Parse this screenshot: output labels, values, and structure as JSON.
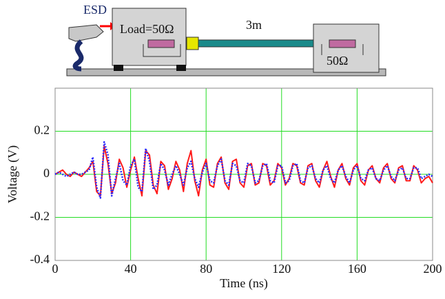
{
  "diagram": {
    "esd": "ESD",
    "load": "Load=50Ω",
    "cable": "3m",
    "termination": "50Ω"
  },
  "chart_data": {
    "type": "line",
    "xlabel": "Time (ns)",
    "ylabel": "Voltage (V)",
    "x": [
      0,
      2,
      4,
      6,
      8,
      10,
      12,
      14,
      16,
      18,
      20,
      22,
      24,
      26,
      28,
      30,
      32,
      34,
      36,
      38,
      40,
      42,
      44,
      46,
      48,
      50,
      52,
      54,
      56,
      58,
      60,
      62,
      64,
      66,
      68,
      70,
      72,
      74,
      76,
      78,
      80,
      82,
      84,
      86,
      88,
      90,
      92,
      94,
      96,
      98,
      100,
      102,
      104,
      106,
      108,
      110,
      112,
      114,
      116,
      118,
      120,
      122,
      124,
      126,
      128,
      130,
      132,
      134,
      136,
      138,
      140,
      142,
      144,
      146,
      148,
      150,
      152,
      154,
      156,
      158,
      160,
      162,
      164,
      166,
      168,
      170,
      172,
      174,
      176,
      178,
      180,
      182,
      184,
      186,
      188,
      190,
      192,
      194,
      196,
      198,
      200
    ],
    "series": [
      {
        "color": "#ff1a1a",
        "style": "solid",
        "values": [
          0,
          0.01,
          0.02,
          0,
          -0.01,
          0.01,
          0,
          -0.01,
          0.01,
          0.03,
          0.06,
          -0.08,
          -0.1,
          0.13,
          0.05,
          -0.09,
          -0.04,
          0.07,
          0.03,
          -0.06,
          0.02,
          0.08,
          -0.02,
          -0.1,
          0.11,
          0.09,
          -0.05,
          -0.09,
          0.06,
          0.04,
          -0.07,
          -0.02,
          0.06,
          0.02,
          -0.08,
          0.05,
          0.11,
          -0.03,
          -0.1,
          0.02,
          0.07,
          -0.05,
          -0.06,
          0.05,
          0.08,
          -0.04,
          -0.07,
          0.06,
          0.07,
          -0.04,
          -0.06,
          0.04,
          0.05,
          -0.05,
          -0.04,
          0.05,
          0.04,
          -0.05,
          -0.03,
          0.05,
          0.03,
          -0.05,
          -0.02,
          0.05,
          0.04,
          -0.04,
          -0.05,
          0.04,
          0.05,
          -0.03,
          -0.06,
          0.02,
          0.06,
          -0.01,
          -0.06,
          0.02,
          0.05,
          -0.02,
          -0.05,
          0.03,
          0.05,
          -0.03,
          -0.05,
          0.02,
          0.04,
          -0.02,
          -0.04,
          0.03,
          0.05,
          -0.02,
          -0.04,
          0.03,
          0.04,
          -0.03,
          -0.03,
          0.04,
          0.02,
          -0.04,
          -0.02,
          -0.01,
          -0.04
        ]
      },
      {
        "color": "#2a2aff",
        "style": "dotted",
        "values": [
          0,
          0.01,
          0,
          -0.01,
          0,
          0.01,
          0,
          0,
          0.01,
          0.02,
          0.08,
          -0.06,
          -0.11,
          0.15,
          0.09,
          -0.1,
          -0.02,
          0.05,
          -0.03,
          -0.05,
          0.04,
          0.07,
          -0.06,
          -0.08,
          0.12,
          0.06,
          -0.07,
          -0.05,
          0.05,
          0.02,
          -0.05,
          0,
          0.04,
          0,
          -0.05,
          0.03,
          0.06,
          -0.02,
          -0.06,
          0.01,
          0.05,
          -0.03,
          -0.04,
          0.04,
          0.07,
          -0.03,
          -0.05,
          0.05,
          0.04,
          -0.03,
          -0.04,
          0.05,
          0.04,
          -0.04,
          -0.03,
          0.04,
          0.05,
          -0.03,
          -0.04,
          0.04,
          0.04,
          -0.04,
          -0.03,
          0.04,
          0.05,
          -0.03,
          -0.04,
          0.03,
          0.04,
          -0.02,
          -0.04,
          0.02,
          0.04,
          -0.02,
          -0.04,
          0.02,
          0.04,
          -0.01,
          -0.04,
          0.02,
          0.04,
          -0.02,
          -0.03,
          0.02,
          0.03,
          -0.02,
          -0.03,
          0.02,
          0.04,
          -0.01,
          -0.03,
          0.02,
          0.03,
          -0.02,
          -0.02,
          0.03,
          0.03,
          -0.02,
          -0.01,
          0,
          -0.01
        ]
      }
    ],
    "xlim": [
      0,
      200
    ],
    "xticks": [
      0,
      40,
      80,
      120,
      160,
      200
    ],
    "ylim": [
      -0.4,
      0.4
    ],
    "yticks": [
      -0.4,
      -0.2,
      0,
      0.2
    ],
    "grid": true,
    "grid_color": "#22dd22"
  }
}
